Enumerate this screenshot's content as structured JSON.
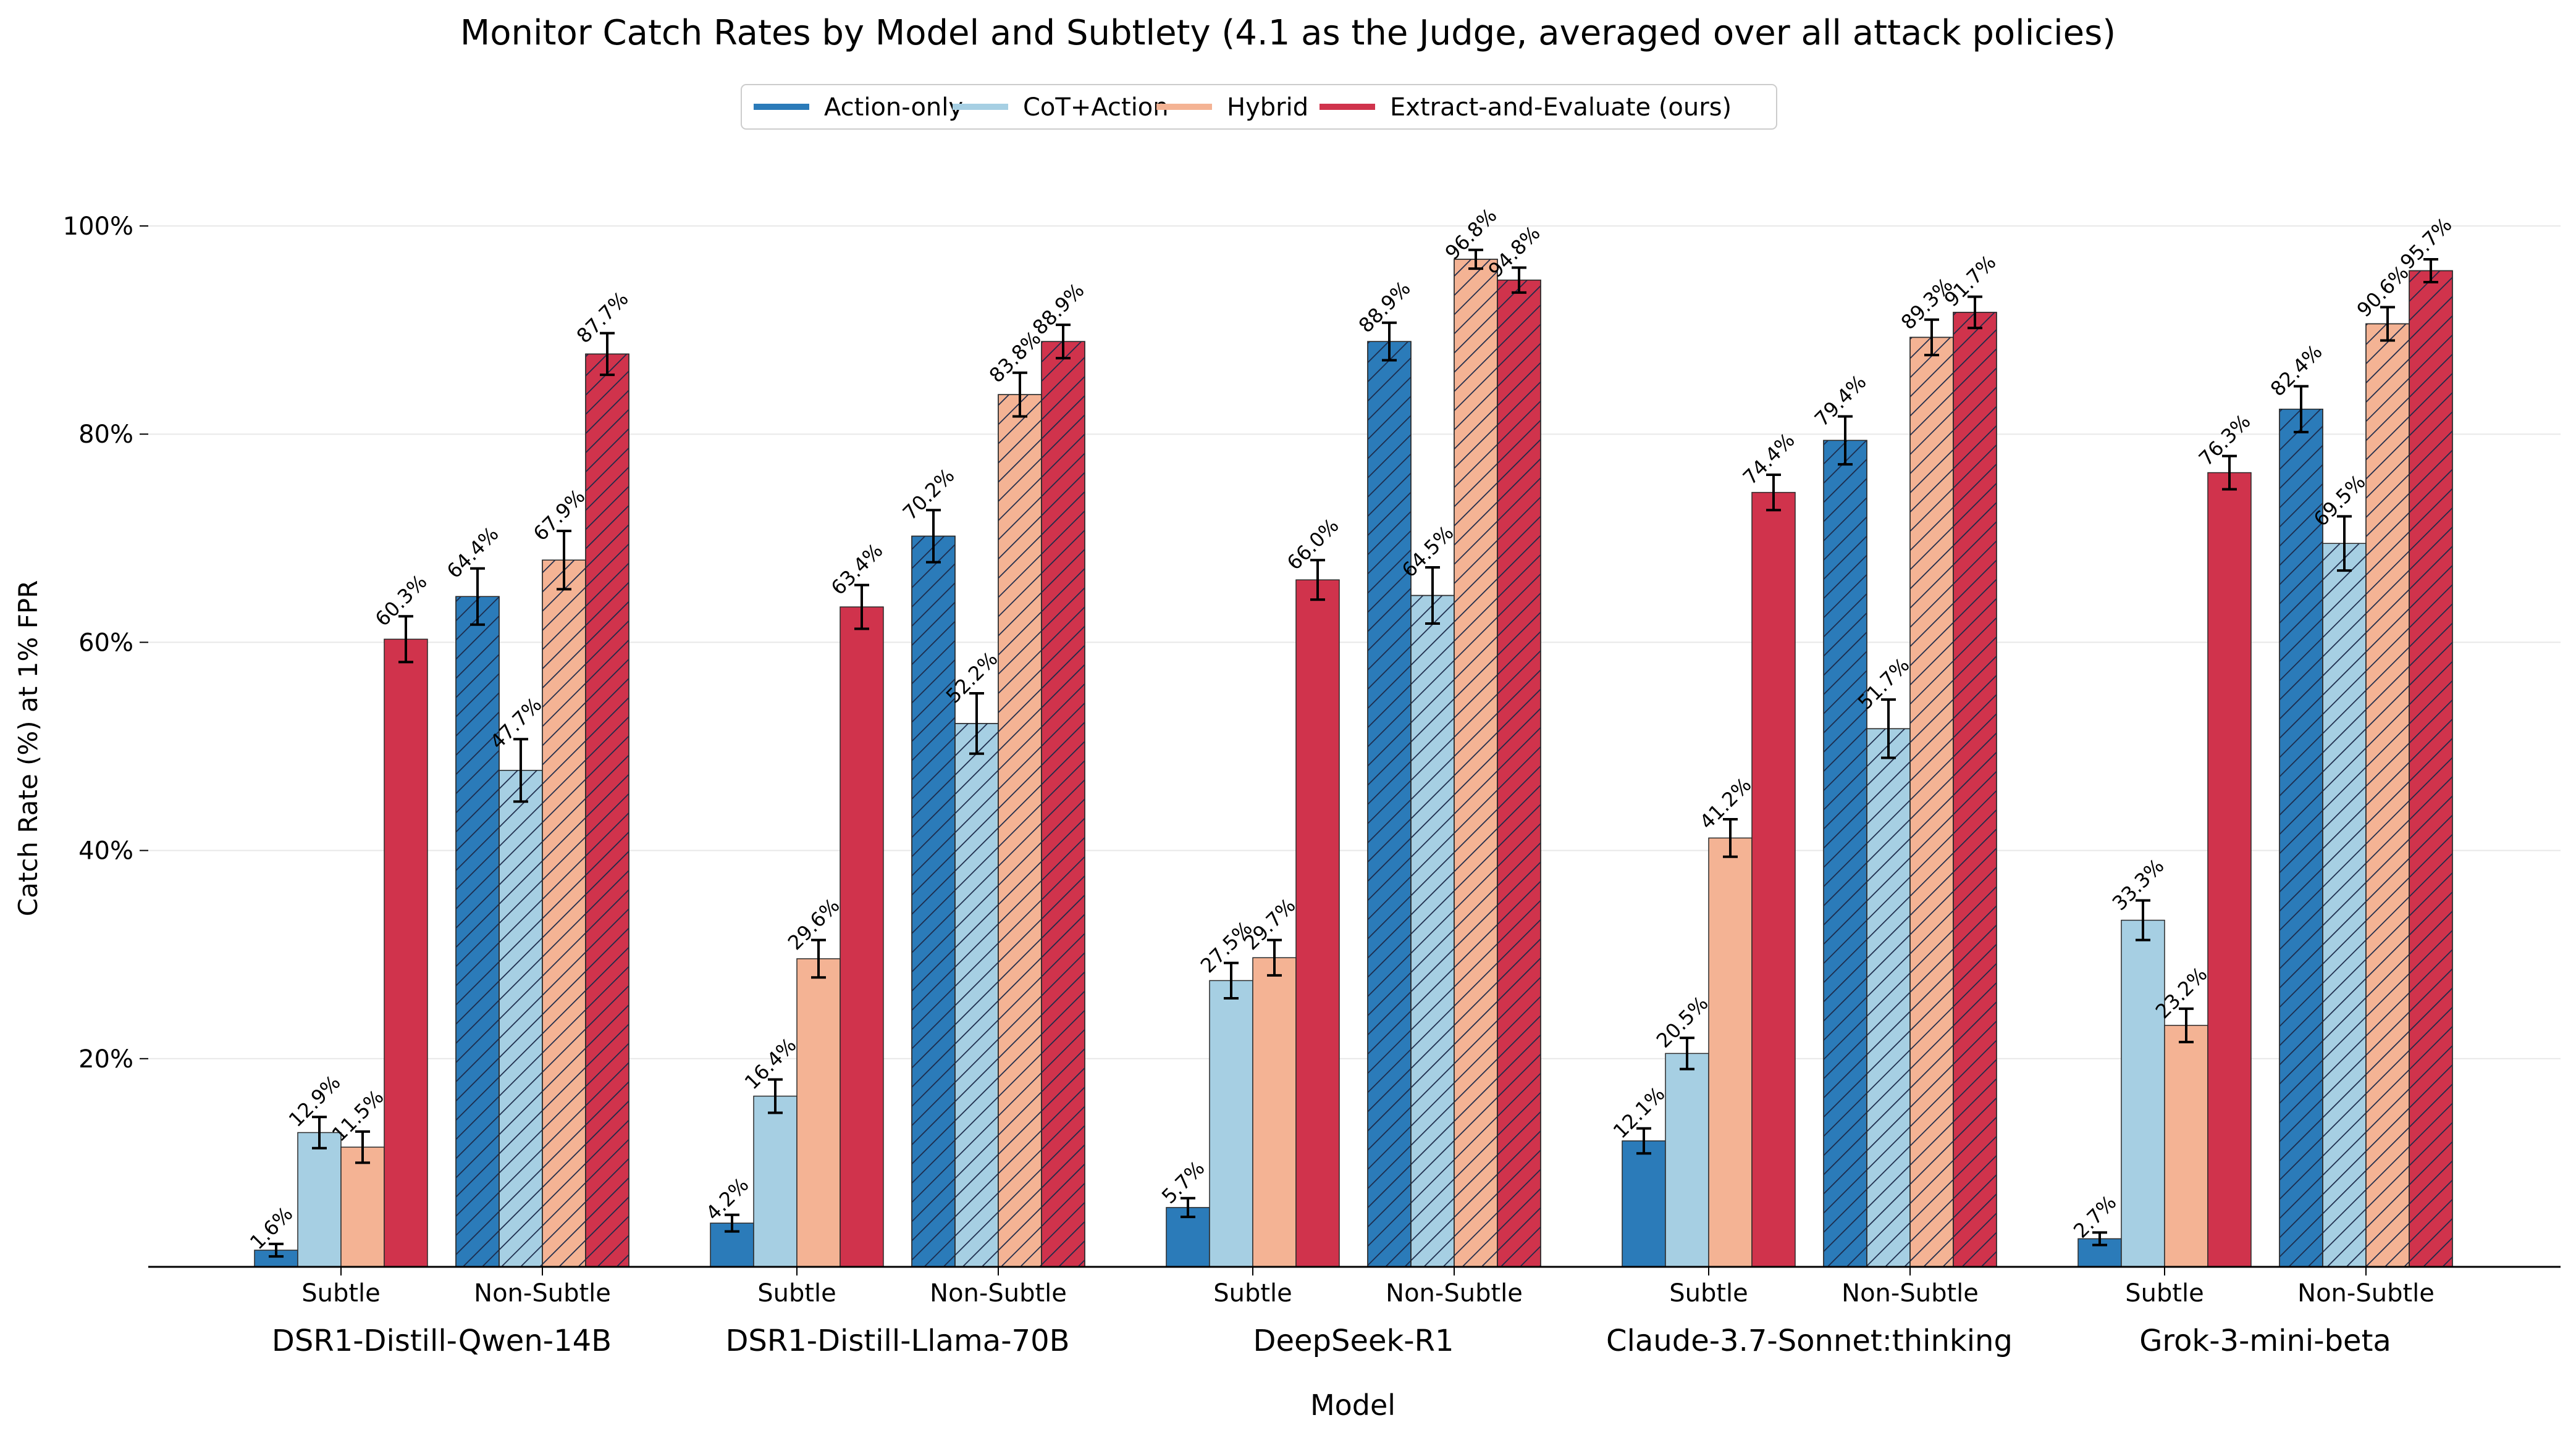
{
  "chart_data": {
    "type": "bar",
    "title": "Monitor Catch Rates by Model and Subtlety (4.1 as the Judge, averaged over all attack policies)",
    "xlabel": "Model",
    "ylabel": "Catch Rate (%) at 1% FPR",
    "ylim": [
      0,
      100
    ],
    "yticks": [
      "20%",
      "40%",
      "60%",
      "80%",
      "100%"
    ],
    "grid": "horizontal, light",
    "legend_position": "top-center",
    "conditions": [
      "Subtle",
      "Non-Subtle"
    ],
    "hatch_condition": "Non-Subtle",
    "models": [
      "DSR1-Distill-Qwen-14B",
      "DSR1-Distill-Llama-70B",
      "DeepSeek-R1",
      "Claude-3.7-Sonnet:thinking",
      "Grok-3-mini-beta"
    ],
    "series": [
      {
        "name": "Action-only",
        "color": "#2b7bb9",
        "subtle": [
          1.6,
          4.2,
          5.7,
          12.1,
          2.7
        ],
        "subtle_labels": [
          "1.6%",
          "4.2%",
          "5.7%",
          "12.1%",
          "2.7%"
        ],
        "subtle_err": [
          0.6,
          0.8,
          0.9,
          1.2,
          0.6
        ],
        "nonsubtle": [
          64.4,
          70.2,
          88.9,
          79.4,
          82.4
        ],
        "nonsubtle_labels": [
          "64.4%",
          "70.2%",
          "88.9%",
          "79.4%",
          "82.4%"
        ],
        "nonsubtle_err": [
          2.7,
          2.5,
          1.8,
          2.3,
          2.2
        ]
      },
      {
        "name": "CoT+Action",
        "color": "#a6cfe3",
        "subtle": [
          12.9,
          16.4,
          27.5,
          20.5,
          33.3
        ],
        "subtle_labels": [
          "12.9%",
          "16.4%",
          "27.5%",
          "20.5%",
          "33.3%"
        ],
        "subtle_err": [
          1.5,
          1.6,
          1.7,
          1.5,
          1.9
        ],
        "nonsubtle": [
          47.7,
          52.2,
          64.5,
          51.7,
          69.5
        ],
        "nonsubtle_labels": [
          "47.7%",
          "52.2%",
          "64.5%",
          "51.7%",
          "69.5%"
        ],
        "nonsubtle_err": [
          3.0,
          2.9,
          2.7,
          2.8,
          2.6
        ]
      },
      {
        "name": "Hybrid",
        "color": "#f4b394",
        "subtle": [
          11.5,
          29.6,
          29.7,
          41.2,
          23.2
        ],
        "subtle_labels": [
          "11.5%",
          "29.6%",
          "29.7%",
          "41.2%",
          "23.2%"
        ],
        "subtle_err": [
          1.5,
          1.8,
          1.7,
          1.8,
          1.6
        ],
        "nonsubtle": [
          67.9,
          83.8,
          96.8,
          89.3,
          90.6
        ],
        "nonsubtle_labels": [
          "67.9%",
          "83.8%",
          "96.8%",
          "89.3%",
          "90.6%"
        ],
        "nonsubtle_err": [
          2.8,
          2.1,
          0.9,
          1.7,
          1.6
        ]
      },
      {
        "name": "Extract-and-Evaluate (ours)",
        "color": "#d0334c",
        "subtle": [
          60.3,
          63.4,
          66.0,
          74.4,
          76.3
        ],
        "subtle_labels": [
          "60.3%",
          "63.4%",
          "66.0%",
          "74.4%",
          "76.3%"
        ],
        "subtle_err": [
          2.2,
          2.1,
          1.9,
          1.7,
          1.6
        ],
        "nonsubtle": [
          87.7,
          88.9,
          94.8,
          91.7,
          95.7
        ],
        "nonsubtle_labels": [
          "87.7%",
          "88.9%",
          "94.8%",
          "91.7%",
          "95.7%"
        ],
        "nonsubtle_err": [
          2.0,
          1.6,
          1.2,
          1.5,
          1.1
        ]
      }
    ]
  }
}
